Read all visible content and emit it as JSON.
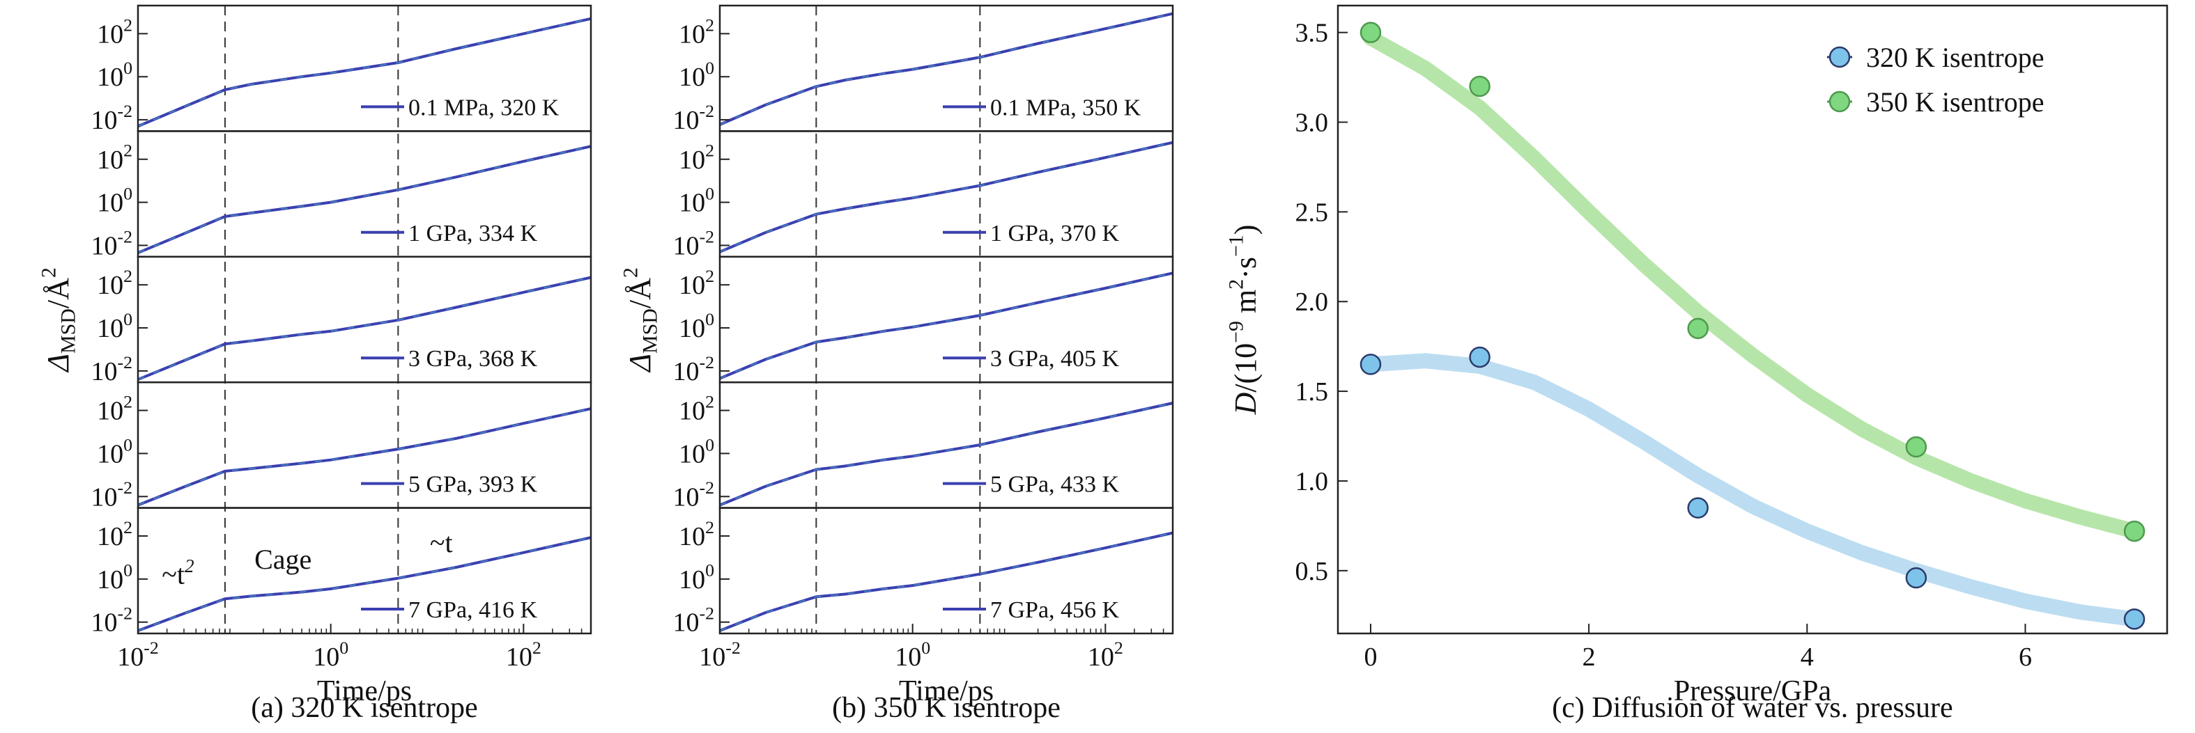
{
  "colors": {
    "msd_line": "#3a3fb0",
    "msd_line_overlay": "#4a8fc0",
    "s320_marker": "#7ec3ea",
    "s320_edge": "#2b3b6b",
    "s320_curve": "#b5d9f0",
    "s350_marker": "#7fd77f",
    "s350_edge": "#4d9a4d",
    "s350_curve": "#aee2a0",
    "frame": "#222222",
    "guide": "#333333"
  },
  "chart_data": [
    {
      "id": "a",
      "type": "line",
      "title": "(a) 320 K isentrope",
      "xlabel": "Time/ps",
      "ylabel": "Δ_MSD/Å^2",
      "xscale": "log",
      "yscale": "log",
      "xlim": [
        0.01,
        500
      ],
      "ylim": [
        0.004,
        1500
      ],
      "x_ticks": [
        "10^-2",
        "10^0",
        "10^2"
      ],
      "y_ticks": [
        "10^-2",
        "10^0",
        "10^2"
      ],
      "vlines_x": [
        0.08,
        5
      ],
      "annotations": [
        {
          "text": "~t",
          "sup": "2",
          "panel": 4,
          "x": 0.026,
          "y": 0.6
        },
        {
          "text": "Cage",
          "sup": "",
          "panel": 4,
          "x": 0.32,
          "y": 3
        },
        {
          "text": "~t",
          "sup": "",
          "panel": 4,
          "x": 14,
          "y": 18
        }
      ],
      "series": [
        {
          "name": "0.1 MPa, 320 K",
          "points": [
            [
              0.01,
              0.005
            ],
            [
              0.03,
              0.04
            ],
            [
              0.08,
              0.25
            ],
            [
              0.15,
              0.45
            ],
            [
              0.5,
              1.0
            ],
            [
              1,
              1.5
            ],
            [
              5,
              4.5
            ],
            [
              20,
              20
            ],
            [
              100,
              100
            ],
            [
              500,
              500
            ]
          ]
        },
        {
          "name": "1 GPa, 334 K",
          "points": [
            [
              0.01,
              0.0045
            ],
            [
              0.03,
              0.035
            ],
            [
              0.08,
              0.22
            ],
            [
              0.15,
              0.32
            ],
            [
              0.5,
              0.65
            ],
            [
              1,
              1.0
            ],
            [
              5,
              3.8
            ],
            [
              20,
              15
            ],
            [
              100,
              80
            ],
            [
              500,
              400
            ]
          ]
        },
        {
          "name": "3 GPa, 368 K",
          "points": [
            [
              0.01,
              0.004
            ],
            [
              0.03,
              0.03
            ],
            [
              0.08,
              0.18
            ],
            [
              0.15,
              0.25
            ],
            [
              0.5,
              0.5
            ],
            [
              1,
              0.7
            ],
            [
              5,
              2.3
            ],
            [
              20,
              9
            ],
            [
              100,
              45
            ],
            [
              500,
              220
            ]
          ]
        },
        {
          "name": "5 GPa, 393 K",
          "points": [
            [
              0.01,
              0.004
            ],
            [
              0.03,
              0.028
            ],
            [
              0.08,
              0.15
            ],
            [
              0.15,
              0.2
            ],
            [
              0.5,
              0.35
            ],
            [
              1,
              0.5
            ],
            [
              5,
              1.6
            ],
            [
              20,
              5
            ],
            [
              100,
              25
            ],
            [
              500,
              120
            ]
          ]
        },
        {
          "name": "7 GPa, 416 K",
          "points": [
            [
              0.01,
              0.004
            ],
            [
              0.03,
              0.025
            ],
            [
              0.08,
              0.12
            ],
            [
              0.15,
              0.16
            ],
            [
              0.5,
              0.25
            ],
            [
              1,
              0.35
            ],
            [
              5,
              1.1
            ],
            [
              20,
              3.5
            ],
            [
              100,
              17
            ],
            [
              500,
              85
            ]
          ]
        }
      ]
    },
    {
      "id": "b",
      "type": "line",
      "title": "(b) 350 K isentrope",
      "xlabel": "Time/ps",
      "ylabel": "Δ_MSD/Å^2",
      "xscale": "log",
      "yscale": "log",
      "xlim": [
        0.01,
        500
      ],
      "ylim": [
        0.004,
        1500
      ],
      "x_ticks": [
        "10^-2",
        "10^0",
        "10^2"
      ],
      "y_ticks": [
        "10^-2",
        "10^0",
        "10^2"
      ],
      "vlines_x": [
        0.1,
        5
      ],
      "annotations": [],
      "series": [
        {
          "name": "0.1 MPa, 350 K",
          "points": [
            [
              0.01,
              0.006
            ],
            [
              0.03,
              0.05
            ],
            [
              0.1,
              0.35
            ],
            [
              0.2,
              0.7
            ],
            [
              0.5,
              1.4
            ],
            [
              1,
              2.2
            ],
            [
              5,
              8
            ],
            [
              20,
              35
            ],
            [
              100,
              170
            ],
            [
              500,
              850
            ]
          ]
        },
        {
          "name": "1 GPa, 370 K",
          "points": [
            [
              0.01,
              0.005
            ],
            [
              0.03,
              0.04
            ],
            [
              0.1,
              0.28
            ],
            [
              0.2,
              0.5
            ],
            [
              0.5,
              1.0
            ],
            [
              1,
              1.6
            ],
            [
              5,
              6
            ],
            [
              20,
              25
            ],
            [
              100,
              120
            ],
            [
              500,
              600
            ]
          ]
        },
        {
          "name": "3 GPa, 405 K",
          "points": [
            [
              0.01,
              0.0045
            ],
            [
              0.03,
              0.035
            ],
            [
              0.1,
              0.22
            ],
            [
              0.2,
              0.35
            ],
            [
              0.5,
              0.7
            ],
            [
              1,
              1.1
            ],
            [
              5,
              3.8
            ],
            [
              20,
              15
            ],
            [
              100,
              70
            ],
            [
              500,
              350
            ]
          ]
        },
        {
          "name": "5 GPa, 433 K",
          "points": [
            [
              0.01,
              0.004
            ],
            [
              0.03,
              0.03
            ],
            [
              0.1,
              0.18
            ],
            [
              0.2,
              0.26
            ],
            [
              0.5,
              0.5
            ],
            [
              1,
              0.75
            ],
            [
              5,
              2.5
            ],
            [
              20,
              10
            ],
            [
              100,
              45
            ],
            [
              500,
              220
            ]
          ]
        },
        {
          "name": "7 GPa, 456 K",
          "points": [
            [
              0.01,
              0.004
            ],
            [
              0.03,
              0.028
            ],
            [
              0.1,
              0.15
            ],
            [
              0.2,
              0.2
            ],
            [
              0.5,
              0.35
            ],
            [
              1,
              0.5
            ],
            [
              5,
              1.7
            ],
            [
              20,
              6
            ],
            [
              100,
              28
            ],
            [
              500,
              140
            ]
          ]
        }
      ]
    },
    {
      "id": "c",
      "type": "scatter",
      "title": "(c) Diffusion of water vs. pressure",
      "xlabel": "Pressure/GPa",
      "ylabel": "D/(10^-9 m^2·s^-1)",
      "xlim": [
        -0.3,
        7.3
      ],
      "ylim": [
        0.15,
        3.65
      ],
      "x_ticks": [
        "0",
        "2",
        "4",
        "6"
      ],
      "y_ticks": [
        "0.5",
        "1.0",
        "1.5",
        "2.0",
        "2.5",
        "3.0",
        "3.5"
      ],
      "legend": {
        "position": "top-right"
      },
      "series": [
        {
          "name": "320 K isentrope",
          "x": [
            0,
            1,
            3,
            5,
            7
          ],
          "y": [
            1.65,
            1.69,
            0.85,
            0.46,
            0.23
          ],
          "fit_x": [
            0,
            0.5,
            1,
            1.5,
            2,
            2.5,
            3,
            3.5,
            4,
            4.5,
            5,
            5.5,
            6,
            6.5,
            7
          ],
          "fit_y": [
            1.65,
            1.67,
            1.64,
            1.55,
            1.4,
            1.22,
            1.03,
            0.86,
            0.72,
            0.6,
            0.5,
            0.41,
            0.33,
            0.27,
            0.23
          ]
        },
        {
          "name": "350 K isentrope",
          "x": [
            0,
            1,
            3,
            5,
            7
          ],
          "y": [
            3.5,
            3.2,
            1.85,
            1.19,
            0.72
          ],
          "fit_x": [
            0,
            0.5,
            1,
            1.5,
            2,
            2.5,
            3,
            3.5,
            4,
            4.5,
            5,
            5.5,
            6,
            6.5,
            7
          ],
          "fit_y": [
            3.47,
            3.3,
            3.08,
            2.8,
            2.5,
            2.21,
            1.94,
            1.7,
            1.48,
            1.29,
            1.13,
            1.0,
            0.89,
            0.8,
            0.72
          ]
        }
      ]
    }
  ]
}
